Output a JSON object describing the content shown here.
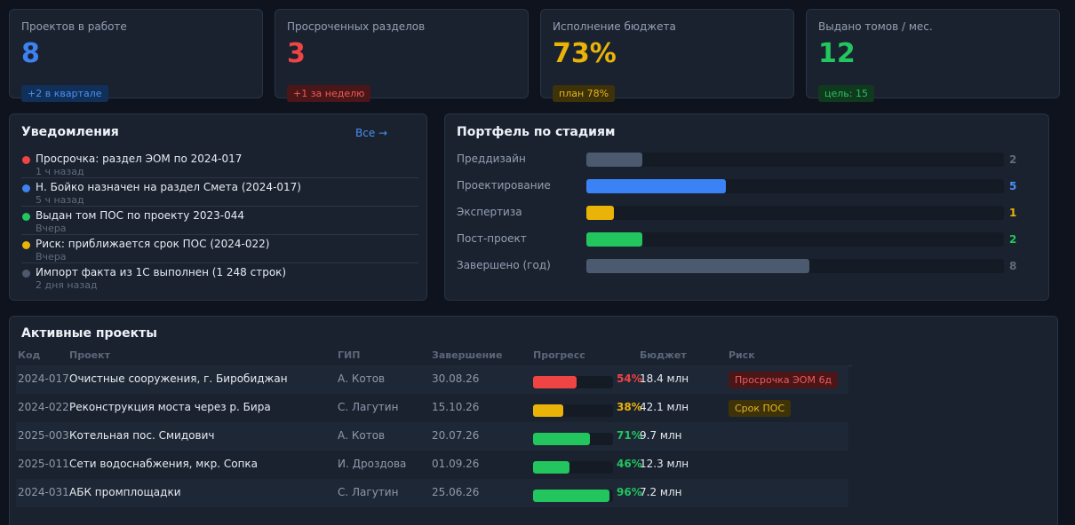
{
  "kpis": [
    {
      "label": "Проектов в работе",
      "value": "8",
      "value_color": "#3d82f0",
      "badge": "+2 в квартале",
      "badge_color": "#4c8ff0",
      "badge_bg": "#10305a"
    },
    {
      "label": "Просроченных разделов",
      "value": "3",
      "value_color": "#ef4444",
      "badge": "+1 за неделю",
      "badge_color": "#ef5a5a",
      "badge_bg": "#4a1618"
    },
    {
      "label": "Исполнение бюджета",
      "value": "73%",
      "value_color": "#eab308",
      "badge": "план 78%",
      "badge_color": "#e5b426",
      "badge_bg": "#3d3208"
    },
    {
      "label": "Выдано томов / мес.",
      "value": "12",
      "value_color": "#22c55e",
      "badge": "цель: 15",
      "badge_color": "#2fbf60",
      "badge_bg": "#0f3a1e"
    }
  ],
  "notifications": {
    "title": "Уведомления",
    "all_link": "Все →",
    "items": [
      {
        "text": "Просрочка: раздел ЭОМ по 2024-017",
        "time": "1 ч назад",
        "color": "#ef4444"
      },
      {
        "text": "Н. Бойко назначен на раздел Смета (2024-017)",
        "time": "5 ч назад",
        "color": "#3d82f0"
      },
      {
        "text": "Выдан том ПОС по проекту 2023-044",
        "time": "Вчера",
        "color": "#22c55e"
      },
      {
        "text": "Риск: приближается срок ПОС (2024-022)",
        "time": "Вчера",
        "color": "#eab308"
      },
      {
        "text": "Импорт факта из 1С выполнен (1 248 строк)",
        "time": "2 дня назад",
        "color": "#4b5a6e"
      }
    ]
  },
  "portfolio": {
    "title": "Портфель по стадиям",
    "scale_max": 15,
    "stages": [
      {
        "label": "Преддизайн",
        "count": "2",
        "value": 2,
        "color": "#4b5a6e",
        "count_color": "#5f6b7c"
      },
      {
        "label": "Проектирование",
        "count": "5",
        "value": 5,
        "color": "#3b82f6",
        "count_color": "#4c8ff0"
      },
      {
        "label": "Экспертиза",
        "count": "1",
        "value": 1,
        "color": "#eab308",
        "count_color": "#eab308"
      },
      {
        "label": "Пост-проект",
        "count": "2",
        "value": 2,
        "color": "#22c55e",
        "count_color": "#22c55e"
      },
      {
        "label": "Завершено (год)",
        "count": "8",
        "value": 8,
        "color": "#4b5a6e",
        "count_color": "#5f6b7c"
      }
    ]
  },
  "projects": {
    "title": "Активные проекты",
    "columns": {
      "code": "Код",
      "project": "Проект",
      "gip": "ГИП",
      "end": "Завершение",
      "progress": "Прогресс",
      "budget": "Бюджет",
      "risk": "Риск"
    },
    "rows": [
      {
        "code": "2024-017",
        "project": "Очистные сооружения, г. Биробиджан",
        "gip": "А. Котов",
        "end": "30.08.26",
        "progress": 54,
        "progress_label": "54%",
        "color": "#ef4444",
        "budget": "18.4 млн",
        "risk": "Просрочка ЭОМ 6д",
        "risk_color": "#ef5a5a",
        "risk_bg": "#4a1618"
      },
      {
        "code": "2024-022",
        "project": "Реконструкция моста через р. Бира",
        "gip": "С. Лагутин",
        "end": "15.10.26",
        "progress": 38,
        "progress_label": "38%",
        "color": "#eab308",
        "budget": "42.1 млн",
        "risk": "Срок ПОС",
        "risk_color": "#e5b426",
        "risk_bg": "#3d3208"
      },
      {
        "code": "2025-003",
        "project": "Котельная пос. Смидович",
        "gip": "А. Котов",
        "end": "20.07.26",
        "progress": 71,
        "progress_label": "71%",
        "color": "#22c55e",
        "budget": "9.7 млн",
        "risk": "",
        "risk_color": "",
        "risk_bg": ""
      },
      {
        "code": "2025-011",
        "project": "Сети водоснабжения, мкр. Сопка",
        "gip": "И. Дроздова",
        "end": "01.09.26",
        "progress": 46,
        "progress_label": "46%",
        "color": "#22c55e",
        "budget": "12.3 млн",
        "risk": "",
        "risk_color": "",
        "risk_bg": ""
      },
      {
        "code": "2024-031",
        "project": "АБК промплощадки",
        "gip": "С. Лагутин",
        "end": "25.06.26",
        "progress": 96,
        "progress_label": "96%",
        "color": "#22c55e",
        "budget": "7.2 млн",
        "risk": "",
        "risk_color": "",
        "risk_bg": ""
      }
    ]
  }
}
